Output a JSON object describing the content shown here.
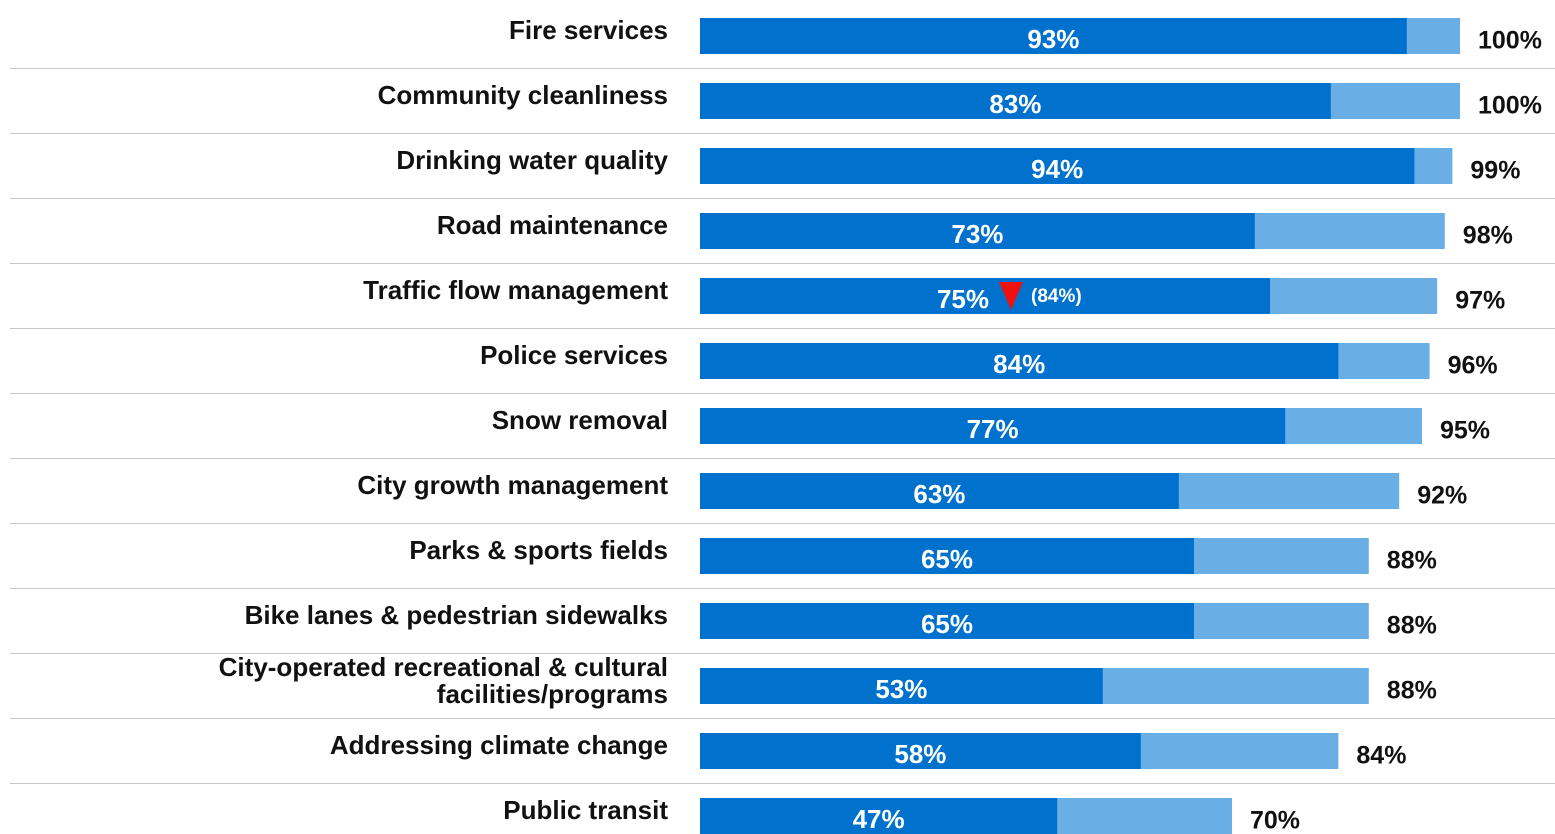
{
  "chart_data": {
    "type": "bar",
    "orientation": "horizontal",
    "barmode": "overlay",
    "categories": [
      "Fire services",
      "Community cleanliness",
      "Drinking water quality",
      "Road maintenance",
      "Traffic flow management",
      "Police services",
      "Snow removal",
      "City growth management",
      "Parks & sports fields",
      "Bike lanes & pedestrian sidewalks",
      "City-operated recreational & cultural\nfacilities/programs",
      "Addressing climate change",
      "Public transit"
    ],
    "series": [
      {
        "color": "#0072ce",
        "values": [
          93,
          83,
          94,
          73,
          75,
          84,
          77,
          63,
          65,
          65,
          53,
          58,
          47
        ],
        "value_labels": [
          "93%",
          "83%",
          "94%",
          "73%",
          "75%",
          "84%",
          "77%",
          "63%",
          "65%",
          "65%",
          "53%",
          "58%",
          "47%"
        ]
      },
      {
        "color": "#6aaee6",
        "values": [
          100,
          100,
          99,
          98,
          97,
          96,
          95,
          92,
          88,
          88,
          88,
          84,
          70
        ],
        "value_labels": [
          "100%",
          "100%",
          "99%",
          "98%",
          "97%",
          "96%",
          "95%",
          "92%",
          "88%",
          "88%",
          "88%",
          "84%",
          "70%"
        ]
      }
    ],
    "previous_values": [
      null,
      null,
      null,
      null,
      84,
      null,
      null,
      null,
      null,
      null,
      null,
      null,
      null
    ],
    "previous_value_labels": [
      null,
      null,
      null,
      null,
      "(84%)",
      null,
      null,
      null,
      null,
      null,
      null,
      null,
      null
    ],
    "decline_marker_color": "#ee1111",
    "xlim": [
      0,
      100
    ]
  }
}
